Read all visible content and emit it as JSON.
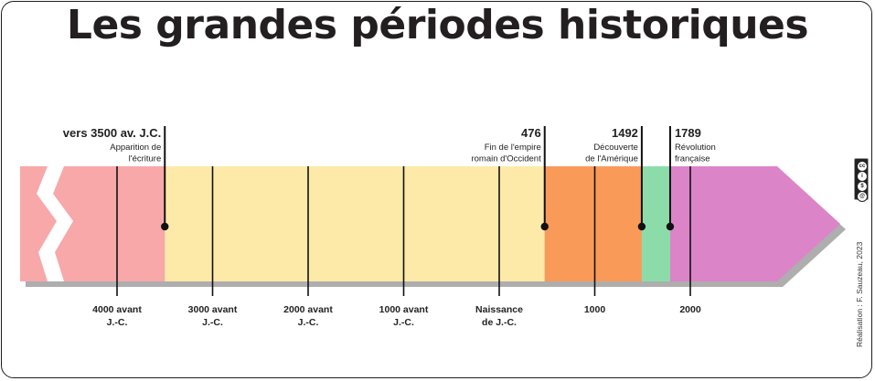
{
  "title": "Les grandes périodes historiques",
  "colors": {
    "prehistoire": "#f8a8a8",
    "antiquite": "#fdeaa8",
    "moyen_age": "#fa9a58",
    "temps_modernes": "#8cdcaa",
    "epoque_contemporaine": "#dc84c8",
    "break_mark": "#ffffff",
    "shadow": "#9a9a9a",
    "line": "#111111",
    "text": "#222222"
  },
  "ticks": [
    {
      "value": -4000,
      "label_lines": [
        "4000 avant",
        "J.-C."
      ]
    },
    {
      "value": -3000,
      "label_lines": [
        "3000 avant",
        "J.-C."
      ]
    },
    {
      "value": -2000,
      "label_lines": [
        "2000 avant",
        "J.-C."
      ]
    },
    {
      "value": -1000,
      "label_lines": [
        "1000 avant",
        "J.-C."
      ]
    },
    {
      "value": 0,
      "label_lines": [
        "Naissance",
        "de J.-C."
      ]
    },
    {
      "value": 1000,
      "label_lines": [
        "1000"
      ]
    },
    {
      "value": 2000,
      "label_lines": [
        "2000"
      ]
    }
  ],
  "periods": [
    {
      "key": "prehistoire",
      "start": -4999,
      "end": -3500
    },
    {
      "key": "antiquite",
      "start": -3500,
      "end": 476
    },
    {
      "key": "moyen_age",
      "start": 476,
      "end": 1492
    },
    {
      "key": "temps_modernes",
      "start": 1492,
      "end": 1789
    },
    {
      "key": "epoque_contemporaine",
      "start": 1789,
      "end": 2900
    }
  ],
  "events": [
    {
      "value": -3500,
      "date": "vers 3500 av. J.C.",
      "desc_lines": [
        "Apparition de",
        "l'écriture"
      ],
      "align": "right"
    },
    {
      "value": 476,
      "date": "476",
      "desc_lines": [
        "Fin de l'empire",
        "romain d'Occident"
      ],
      "align": "right"
    },
    {
      "value": 1492,
      "date": "1492",
      "desc_lines": [
        "Découverte",
        "de l'Amérique"
      ],
      "align": "right"
    },
    {
      "value": 1789,
      "date": "1789",
      "desc_lines": [
        "Révolution",
        "française"
      ],
      "align": "left"
    }
  ],
  "credit": "Réalisation : F. Sauzeau, 2023",
  "license_icon": "cc-by-nc-sa-icon"
}
